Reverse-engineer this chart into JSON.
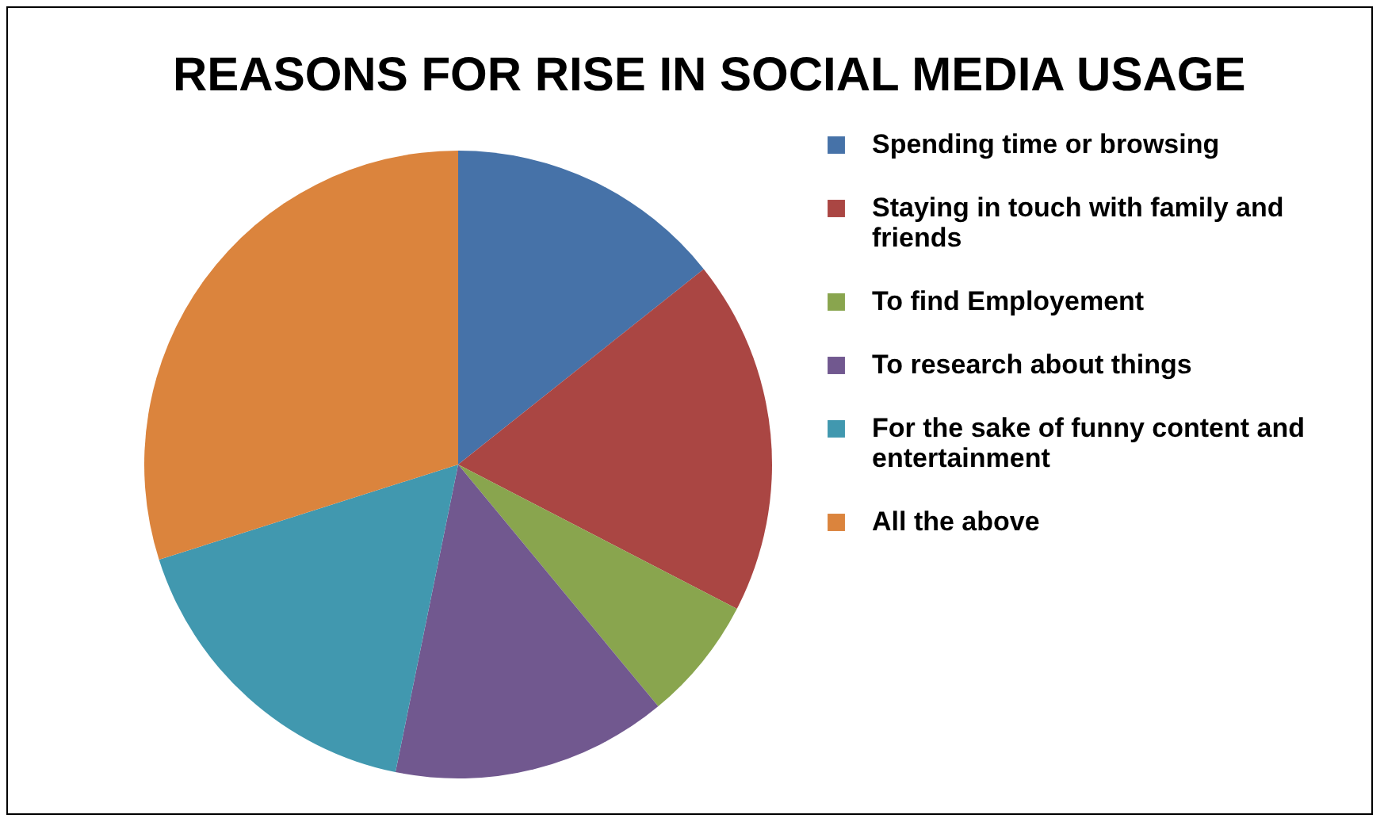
{
  "chart_data": {
    "type": "pie",
    "title": "REASONS FOR RISE IN SOCIAL MEDIA USAGE",
    "categories": [
      "Spending time or browsing",
      "Staying in touch with family and friends",
      "To find Employement",
      "To research about things",
      "For the sake of funny content and entertainment",
      "All the above"
    ],
    "values": [
      14.3,
      18.3,
      6.4,
      14.2,
      16.9,
      29.9
    ],
    "colors": [
      "#4672a8",
      "#aa4643",
      "#89a54e",
      "#71588f",
      "#4198af",
      "#db843d"
    ],
    "legend": "right"
  }
}
